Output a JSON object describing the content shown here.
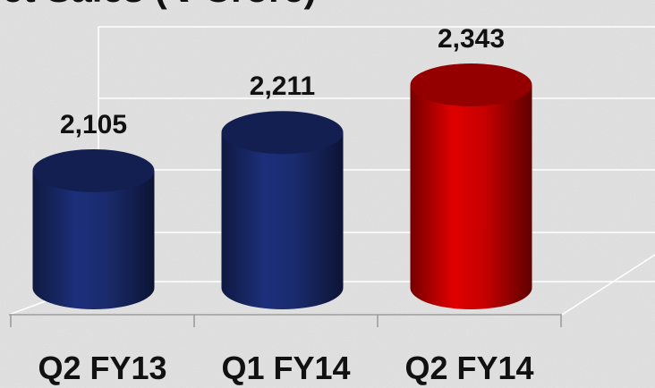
{
  "chart_data": {
    "type": "bar",
    "title": "Net Sales (₹ Crore)",
    "categories": [
      "Q2 FY13",
      "Q1 FY14",
      "Q2 FY14"
    ],
    "values": [
      2105,
      2211,
      2343
    ],
    "value_labels": [
      "2,105",
      "2,211",
      "2,343"
    ],
    "colors": [
      "#1b2d74",
      "#1b2d74",
      "#d40000"
    ],
    "ylim": [
      1780,
      2400
    ]
  }
}
